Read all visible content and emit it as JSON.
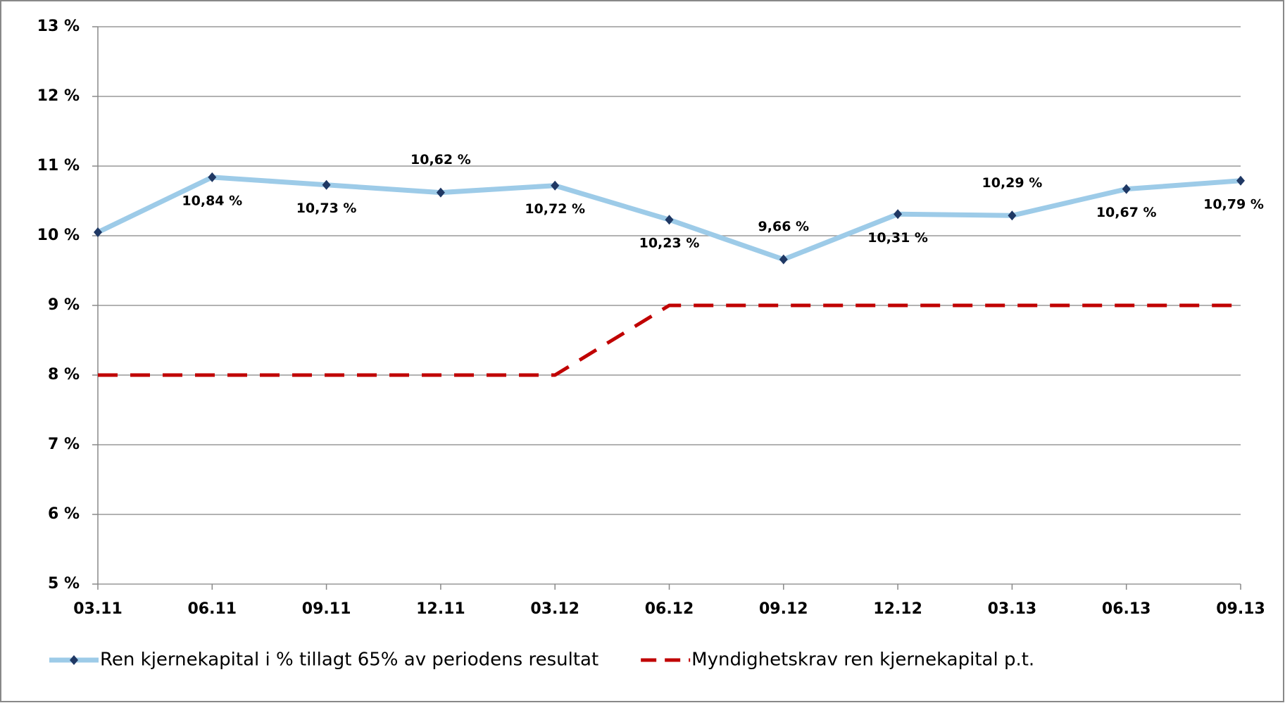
{
  "chart_data": {
    "type": "line",
    "categories": [
      "03.11",
      "06.11",
      "09.11",
      "12.11",
      "03.12",
      "06.12",
      "09.12",
      "12.12",
      "03.13",
      "06.13",
      "09.13"
    ],
    "series": [
      {
        "name": "Ren kjernekapital i % tillagt 65% av periodens resultat",
        "color": "#9dcbe8",
        "marker_color": "#1f3864",
        "dash": false,
        "values": [
          10.05,
          10.84,
          10.73,
          10.62,
          10.72,
          10.23,
          9.66,
          10.31,
          10.29,
          10.67,
          10.79
        ],
        "value_labels": [
          null,
          "10,84 %",
          "10,73 %",
          "10,62 %",
          "10,72 %",
          "10,23 %",
          "9,66 %",
          "10,31 %",
          "10,29 %",
          "10,67 %",
          "10,79 %"
        ]
      },
      {
        "name": "Myndighetskrav ren kjernekapital p.t.",
        "color": "#c00000",
        "dash": true,
        "values": [
          8,
          8,
          8,
          8,
          8,
          9,
          9,
          9,
          9,
          9,
          9
        ]
      }
    ],
    "ylim": [
      5,
      13
    ],
    "yticks": [
      {
        "value": 5,
        "label": "5 %"
      },
      {
        "value": 6,
        "label": "6 %"
      },
      {
        "value": 7,
        "label": "7 %"
      },
      {
        "value": 8,
        "label": "8 %"
      },
      {
        "value": 9,
        "label": "9 %"
      },
      {
        "value": 10,
        "label": "10 %"
      },
      {
        "value": 11,
        "label": "11 %"
      },
      {
        "value": 12,
        "label": "12 %"
      },
      {
        "value": 13,
        "label": "13 %"
      }
    ],
    "grid": true,
    "legend": "bottom"
  }
}
